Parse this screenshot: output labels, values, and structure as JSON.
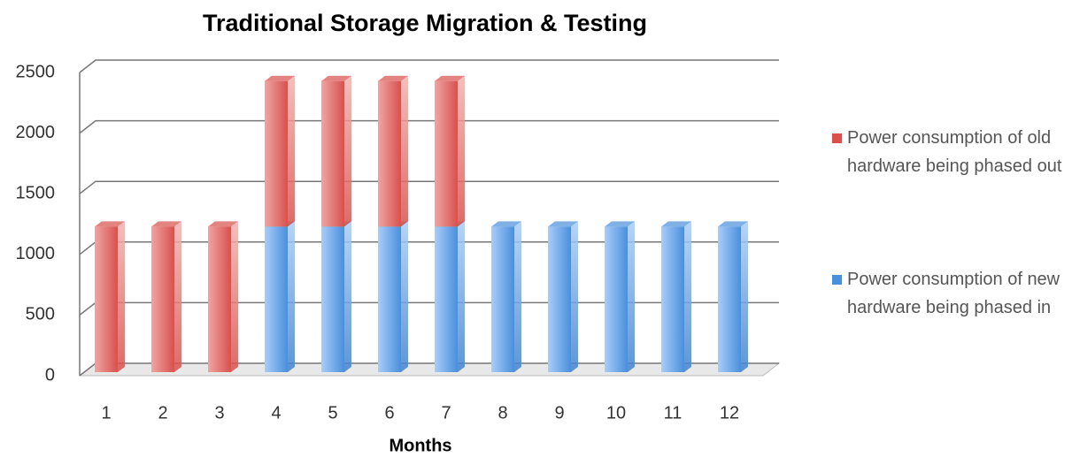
{
  "chart_data": {
    "type": "bar",
    "stacked": true,
    "title": "Traditional Storage Migration & Testing",
    "x_label": "Months",
    "categories": [
      "1",
      "2",
      "3",
      "4",
      "5",
      "6",
      "7",
      "8",
      "9",
      "10",
      "11",
      "12"
    ],
    "series": [
      {
        "name": "Power consumption of old hardware being phased out",
        "color": "#d9504c",
        "values": [
          1200,
          1200,
          1200,
          1200,
          1200,
          1200,
          1200,
          0,
          0,
          0,
          0,
          0
        ]
      },
      {
        "name": "Power consumption of new hardware being phased in",
        "color": "#4a8fdc",
        "values": [
          0,
          0,
          0,
          1200,
          1200,
          1200,
          1200,
          1200,
          1200,
          1200,
          1200,
          1200
        ]
      }
    ],
    "ylim": [
      0,
      2500
    ],
    "yticks": [
      0,
      500,
      1000,
      1500,
      2000,
      2500
    ],
    "grid": true
  }
}
